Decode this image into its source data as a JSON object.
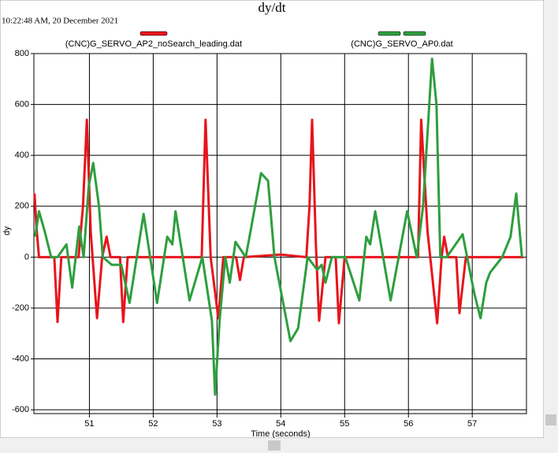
{
  "chart_data": {
    "type": "line",
    "title": "dy/dt",
    "subtitle": "10:22:48 AM, 20 December 2021",
    "x_label": "Time (seconds)",
    "y_label": "dy",
    "xlim": [
      50.13,
      57.85
    ],
    "xticks": [
      51,
      52,
      53,
      54,
      55,
      56,
      57
    ],
    "ylim": [
      -615,
      800
    ],
    "yticks": [
      -600,
      -400,
      -200,
      0,
      200,
      400,
      600,
      800
    ],
    "grid": true,
    "series": [
      {
        "name": "(CNC)G_SERVO_AP2_noSearch_leading.dat",
        "color": "#e8141b",
        "x": [
          50.14,
          50.17,
          50.21,
          50.45,
          50.5,
          50.56,
          50.83,
          50.9,
          50.96,
          51.02,
          51.12,
          51.2,
          51.27,
          51.33,
          51.48,
          51.53,
          51.6,
          52.76,
          52.82,
          52.9,
          53.02,
          53.1,
          53.3,
          53.36,
          53.42,
          54.0,
          54.4,
          54.45,
          54.49,
          54.55,
          54.6,
          54.7,
          54.86,
          54.91,
          55.0,
          56.15,
          56.2,
          56.3,
          56.45,
          56.52,
          56.56,
          56.62,
          56.75,
          56.8,
          56.9,
          57.8
        ],
        "values": [
          250,
          120,
          0,
          0,
          -255,
          0,
          0,
          200,
          540,
          100,
          -240,
          0,
          80,
          0,
          0,
          -255,
          0,
          0,
          540,
          0,
          -240,
          0,
          0,
          -90,
          0,
          10,
          0,
          200,
          540,
          50,
          -250,
          0,
          0,
          -260,
          0,
          0,
          540,
          100,
          -260,
          0,
          80,
          0,
          0,
          -220,
          0,
          0
        ]
      },
      {
        "name": "(CNC)G_SERVO_AP0.dat",
        "color": "#2e9e3e",
        "x": [
          50.15,
          50.21,
          50.3,
          50.4,
          50.5,
          50.64,
          50.73,
          50.84,
          50.91,
          50.99,
          51.06,
          51.15,
          51.21,
          51.35,
          51.5,
          51.63,
          51.85,
          52.06,
          52.22,
          52.3,
          52.35,
          52.57,
          52.77,
          52.92,
          52.97,
          53.04,
          53.13,
          53.2,
          53.29,
          53.45,
          53.51,
          53.69,
          53.8,
          53.9,
          54.15,
          54.27,
          54.42,
          54.57,
          54.64,
          54.7,
          54.8,
          55.01,
          55.23,
          55.34,
          55.4,
          55.48,
          55.72,
          55.98,
          56.13,
          56.23,
          56.37,
          56.44,
          56.5,
          56.6,
          56.85,
          57.03,
          57.13,
          57.22,
          57.28,
          57.47,
          57.6,
          57.69,
          57.78
        ],
        "values": [
          80,
          180,
          100,
          0,
          0,
          50,
          -120,
          120,
          0,
          280,
          370,
          200,
          0,
          -30,
          -30,
          -180,
          170,
          -180,
          80,
          50,
          180,
          -170,
          0,
          -250,
          -540,
          -250,
          0,
          -100,
          60,
          0,
          80,
          330,
          300,
          0,
          -330,
          -280,
          0,
          -50,
          -30,
          -100,
          0,
          0,
          -170,
          80,
          50,
          180,
          -170,
          180,
          0,
          200,
          780,
          600,
          0,
          0,
          90,
          -140,
          -240,
          -100,
          -60,
          0,
          80,
          250,
          0
        ]
      }
    ]
  }
}
